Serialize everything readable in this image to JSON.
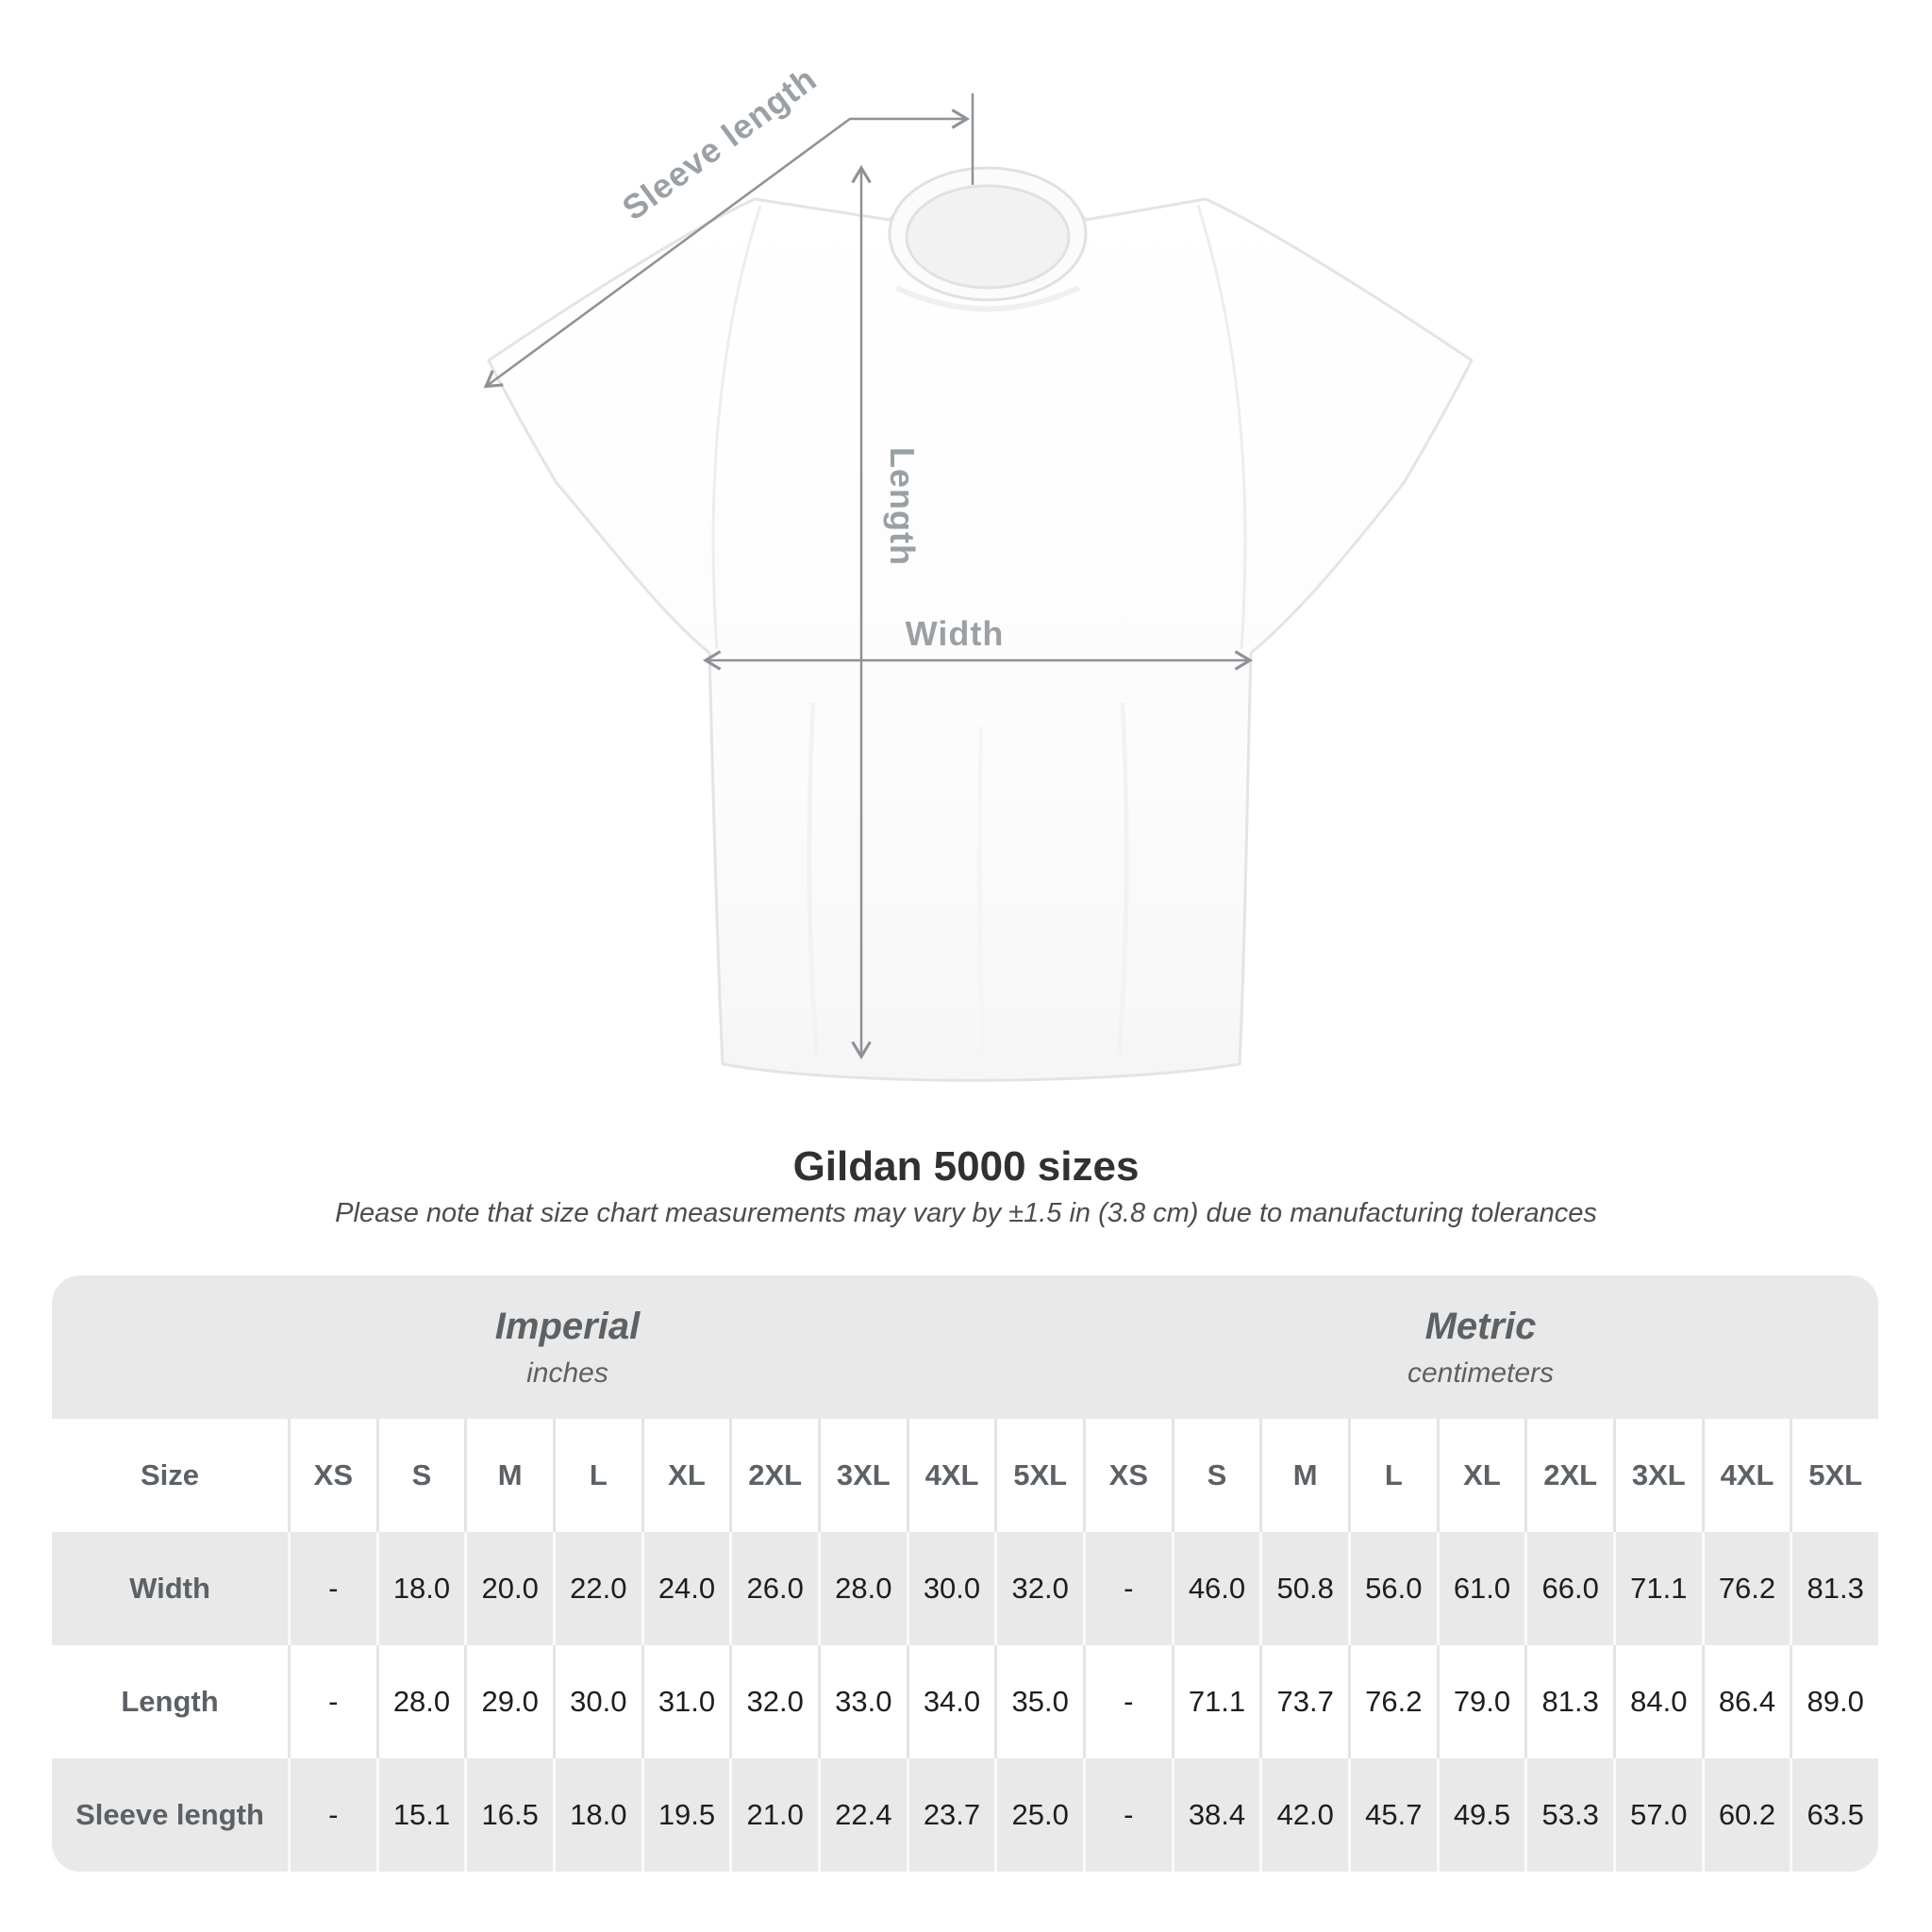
{
  "diagram": {
    "labels": {
      "sleeve_length": "Sleeve length",
      "length": "Length",
      "width": "Width"
    },
    "line_color": "#8e9296",
    "label_color": "#9aa0a4"
  },
  "heading": {
    "title": "Gildan 5000 sizes",
    "subtitle": "Please note that size chart measurements may vary by ±1.5 in (3.8 cm) due to manufacturing tolerances"
  },
  "table": {
    "group_headers": [
      {
        "title": "Imperial",
        "unit": "inches"
      },
      {
        "title": "Metric",
        "unit": "centimeters"
      }
    ],
    "size_label": "Size",
    "sizes": [
      "XS",
      "S",
      "M",
      "L",
      "XL",
      "2XL",
      "3XL",
      "4XL",
      "5XL"
    ],
    "rows": [
      {
        "label": "Width",
        "imperial": [
          "-",
          "18.0",
          "20.0",
          "22.0",
          "24.0",
          "26.0",
          "28.0",
          "30.0",
          "32.0"
        ],
        "metric": [
          "-",
          "46.0",
          "50.8",
          "56.0",
          "61.0",
          "66.0",
          "71.1",
          "76.2",
          "81.3"
        ]
      },
      {
        "label": "Length",
        "imperial": [
          "-",
          "28.0",
          "29.0",
          "30.0",
          "31.0",
          "32.0",
          "33.0",
          "34.0",
          "35.0"
        ],
        "metric": [
          "-",
          "71.1",
          "73.7",
          "76.2",
          "79.0",
          "81.3",
          "84.0",
          "86.4",
          "89.0"
        ]
      },
      {
        "label": "Sleeve length",
        "imperial": [
          "-",
          "15.1",
          "16.5",
          "18.0",
          "19.5",
          "21.0",
          "22.4",
          "23.7",
          "25.0"
        ],
        "metric": [
          "-",
          "38.4",
          "42.0",
          "45.7",
          "49.5",
          "53.3",
          "57.0",
          "60.2",
          "63.5"
        ]
      }
    ],
    "colors": {
      "band": "#e9e9e9",
      "row_alt": "#ffffff",
      "header_text": "#5c6165",
      "data_text": "#1e1e1e"
    }
  }
}
